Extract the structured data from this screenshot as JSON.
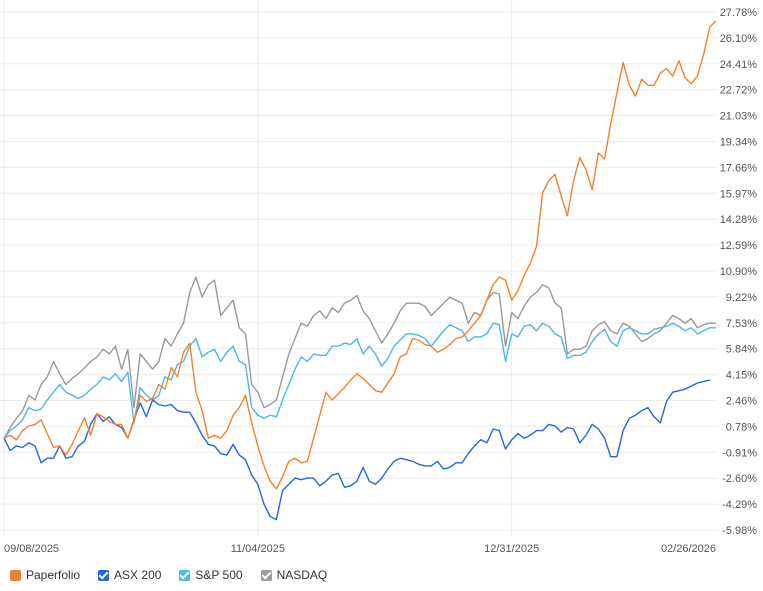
{
  "chart_data": {
    "type": "line",
    "title": "",
    "xlabel": "",
    "ylabel": "",
    "y_unit": "%",
    "ylim": [
      -5.98,
      27.78
    ],
    "y_ticks": [
      "27.78%",
      "26.10%",
      "24.41%",
      "22.72%",
      "21.03%",
      "19.34%",
      "17.66%",
      "15.97%",
      "14.28%",
      "12.59%",
      "10.90%",
      "9.22%",
      "7.53%",
      "5.84%",
      "4.15%",
      "2.46%",
      "0.78%",
      "-0.91%",
      "-2.60%",
      "-4.29%",
      "-5.98%"
    ],
    "x_ticks": [
      "09/08/2025",
      "11/04/2025",
      "12/31/2025",
      "02/26/2026"
    ],
    "x_tick_index": [
      0,
      41,
      82,
      123
    ],
    "grid": true,
    "legend_position": "bottom-left",
    "series": [
      {
        "name": "Paperfolio",
        "color": "#f5822a",
        "checkbox": "square",
        "values": [
          0.0,
          0.2,
          -0.1,
          0.5,
          0.8,
          0.9,
          1.2,
          0.3,
          -0.6,
          -0.5,
          -1.1,
          -0.4,
          0.5,
          1.3,
          0.2,
          1.6,
          1.4,
          1.1,
          0.9,
          0.9,
          0.0,
          1.1,
          2.8,
          2.4,
          2.6,
          3.5,
          3.2,
          4.6,
          4.0,
          5.6,
          6.2,
          3.0,
          1.8,
          0.0,
          0.2,
          0.0,
          0.5,
          1.5,
          2.0,
          2.8,
          1.0,
          -0.5,
          -1.8,
          -2.8,
          -3.3,
          -2.5,
          -1.5,
          -1.3,
          -1.6,
          -1.5,
          0.0,
          1.5,
          3.0,
          2.5,
          2.9,
          3.3,
          3.8,
          4.2,
          3.9,
          3.5,
          3.1,
          3.0,
          3.6,
          4.2,
          5.3,
          5.5,
          6.5,
          6.4,
          6.1,
          6.0,
          5.6,
          5.8,
          6.1,
          6.5,
          6.6,
          7.0,
          7.5,
          8.0,
          9.0,
          10.0,
          10.5,
          10.3,
          9.0,
          9.6,
          10.6,
          11.4,
          12.5,
          16.0,
          16.8,
          17.2,
          15.8,
          14.5,
          16.8,
          18.3,
          17.5,
          16.2,
          18.6,
          18.2,
          20.5,
          22.5,
          24.5,
          23.0,
          22.3,
          23.4,
          23.0,
          23.0,
          23.8,
          24.1,
          23.6,
          24.6,
          23.5,
          23.1,
          23.6,
          25.0,
          26.8,
          27.2
        ]
      },
      {
        "name": "ASX 200",
        "color": "#2266e8",
        "checkbox": "checked",
        "values": [
          0.0,
          -0.8,
          -0.5,
          -0.6,
          -0.3,
          -0.5,
          -1.6,
          -1.3,
          -1.3,
          -0.5,
          -1.3,
          -1.2,
          -0.5,
          -0.2,
          0.9,
          1.6,
          1.1,
          1.4,
          0.9,
          0.7,
          0.0,
          1.2,
          2.3,
          1.4,
          2.5,
          2.2,
          2.1,
          2.2,
          1.8,
          1.7,
          1.7,
          1.0,
          0.2,
          -0.4,
          -0.5,
          -1.0,
          -1.1,
          -0.4,
          -1.1,
          -1.4,
          -2.4,
          -3.0,
          -4.3,
          -5.1,
          -5.3,
          -3.4,
          -3.0,
          -2.6,
          -2.7,
          -2.6,
          -2.6,
          -3.1,
          -2.8,
          -2.4,
          -2.3,
          -3.2,
          -3.1,
          -2.8,
          -1.9,
          -2.8,
          -3.0,
          -2.6,
          -2.0,
          -1.5,
          -1.3,
          -1.4,
          -1.5,
          -1.7,
          -1.8,
          -1.8,
          -1.5,
          -2.0,
          -1.9,
          -1.6,
          -1.6,
          -1.0,
          -0.5,
          -0.1,
          -0.3,
          0.6,
          0.5,
          -0.7,
          -0.1,
          0.3,
          0.0,
          0.2,
          0.5,
          0.5,
          0.9,
          0.8,
          0.4,
          0.7,
          0.6,
          -0.3,
          0.2,
          0.9,
          0.6,
          0.0,
          -1.2,
          -1.2,
          0.5,
          1.3,
          1.5,
          1.8,
          2.0,
          1.4,
          1.0,
          2.4,
          3.0,
          3.1,
          3.2,
          3.4,
          3.6,
          3.7,
          3.8
        ]
      },
      {
        "name": "S&P 500",
        "color": "#4cb8e8",
        "checkbox": "checked",
        "values": [
          0.0,
          0.5,
          0.8,
          1.2,
          2.0,
          1.8,
          1.9,
          2.5,
          3.0,
          3.5,
          3.0,
          2.8,
          2.6,
          2.8,
          3.2,
          3.5,
          4.0,
          3.8,
          4.2,
          3.7,
          4.3,
          1.0,
          3.3,
          2.8,
          2.5,
          2.8,
          4.0,
          3.8,
          4.8,
          5.0,
          6.0,
          6.5,
          5.3,
          5.6,
          5.8,
          5.0,
          5.6,
          6.0,
          5.0,
          4.8,
          2.0,
          1.5,
          1.3,
          1.5,
          1.4,
          2.5,
          3.5,
          4.5,
          5.3,
          5.0,
          5.5,
          5.4,
          5.4,
          6.0,
          6.0,
          6.2,
          6.1,
          6.5,
          5.5,
          6.0,
          5.5,
          4.7,
          5.2,
          6.0,
          6.4,
          6.8,
          6.8,
          6.7,
          6.5,
          6.0,
          6.5,
          7.0,
          7.4,
          7.2,
          7.0,
          6.3,
          6.6,
          6.6,
          6.8,
          7.5,
          7.4,
          5.0,
          6.8,
          6.6,
          7.3,
          7.4,
          7.0,
          7.5,
          7.3,
          6.8,
          6.6,
          5.2,
          5.4,
          5.4,
          5.6,
          6.3,
          6.8,
          7.1,
          6.3,
          6.0,
          7.0,
          7.2,
          7.0,
          6.8,
          6.8,
          7.1,
          7.2,
          7.3,
          7.5,
          7.3,
          7.0,
          7.2,
          6.8,
          7.0,
          7.2,
          7.2
        ]
      },
      {
        "name": "NASDAQ",
        "color": "#9a9a9a",
        "checkbox": "checked",
        "values": [
          0.0,
          0.7,
          1.3,
          1.8,
          2.8,
          2.5,
          3.5,
          4.0,
          5.0,
          4.2,
          3.5,
          3.9,
          4.2,
          4.6,
          5.0,
          5.3,
          5.8,
          5.5,
          6.0,
          4.5,
          5.8,
          2.0,
          5.5,
          5.0,
          4.5,
          5.0,
          6.5,
          6.0,
          6.8,
          7.5,
          9.5,
          10.5,
          9.2,
          10.0,
          10.3,
          8.0,
          8.5,
          9.0,
          7.2,
          6.8,
          3.5,
          3.0,
          2.0,
          2.2,
          2.5,
          4.0,
          5.5,
          6.5,
          7.5,
          7.3,
          8.0,
          8.3,
          7.8,
          8.5,
          8.2,
          8.8,
          9.0,
          9.3,
          8.3,
          7.8,
          7.0,
          6.2,
          6.8,
          7.5,
          8.3,
          8.8,
          8.8,
          8.8,
          8.6,
          8.0,
          8.4,
          8.8,
          9.2,
          9.0,
          8.8,
          7.5,
          8.2,
          8.0,
          9.0,
          9.5,
          9.4,
          6.0,
          8.2,
          7.8,
          8.6,
          9.2,
          9.5,
          10.0,
          9.8,
          8.8,
          8.5,
          5.5,
          5.8,
          5.8,
          6.0,
          7.0,
          7.4,
          7.6,
          7.0,
          6.8,
          7.5,
          7.3,
          6.8,
          6.3,
          6.5,
          6.8,
          7.0,
          7.5,
          8.0,
          7.8,
          7.5,
          7.8,
          7.2,
          7.4,
          7.5,
          7.5
        ]
      }
    ]
  }
}
